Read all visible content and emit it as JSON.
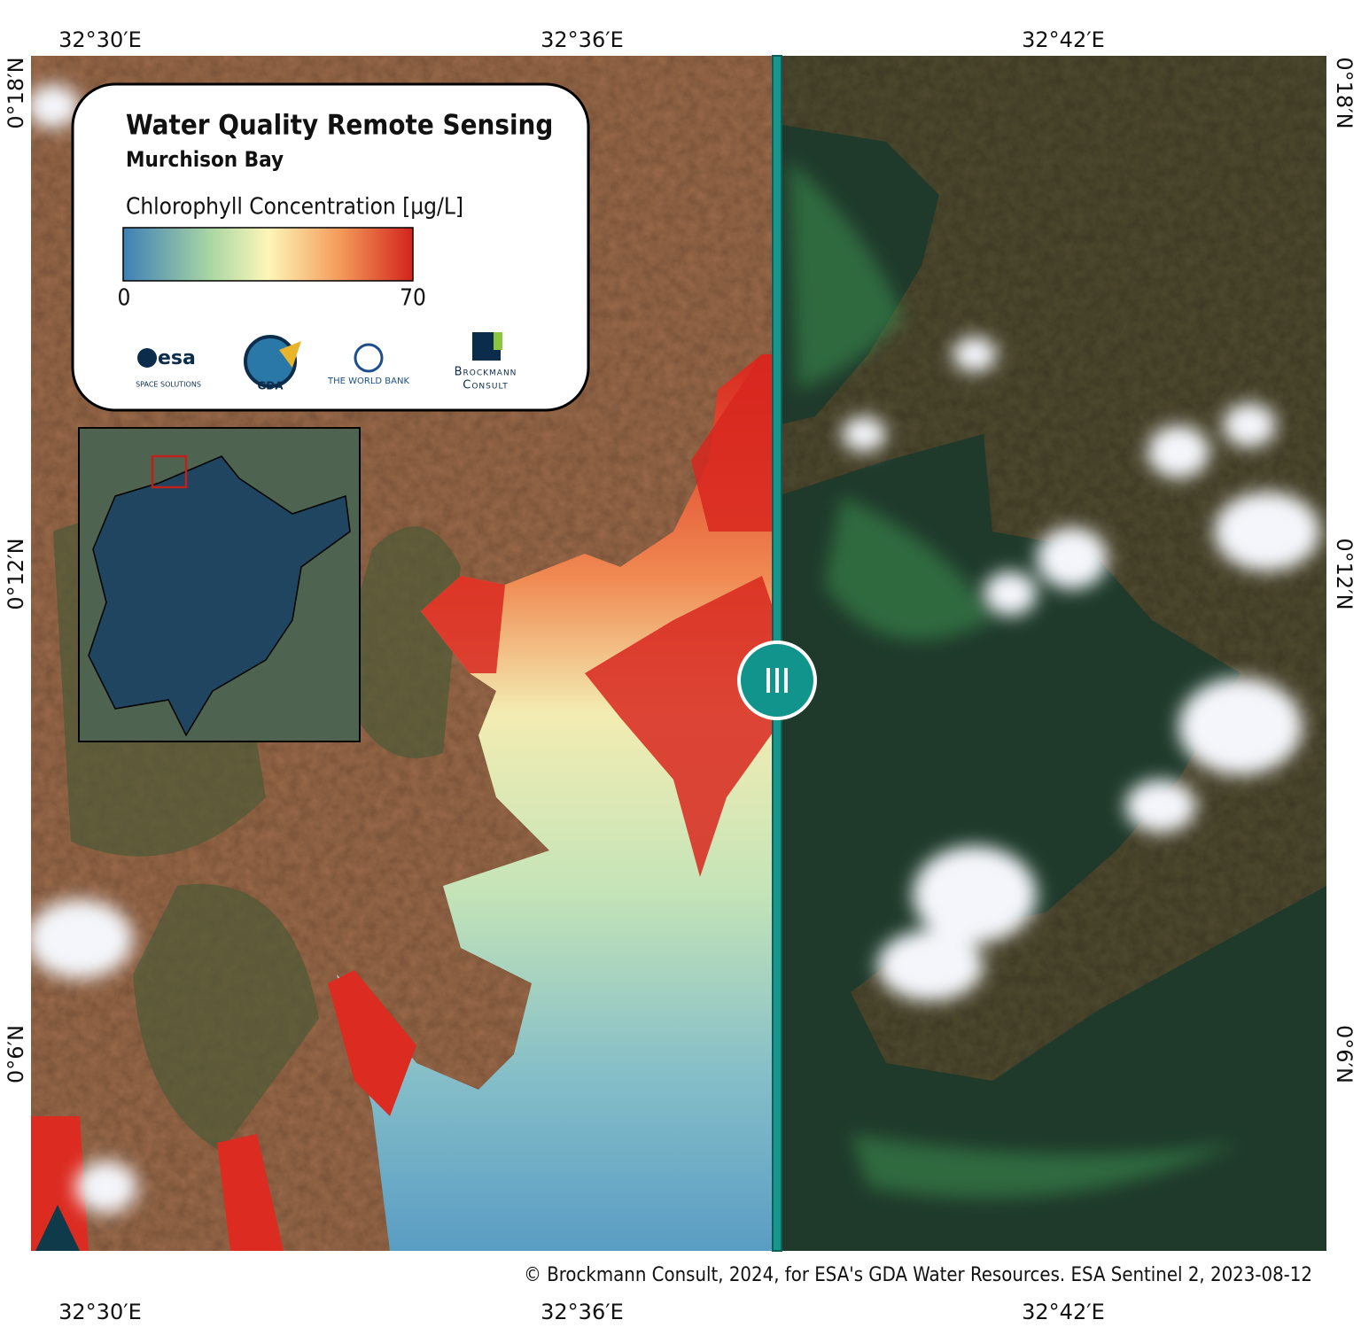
{
  "header": {
    "title": "Water Quality Remote Sensing",
    "subtitle": "Murchison Bay"
  },
  "legend": {
    "label": "Chlorophyll Concentration [µg/L]",
    "min": 0,
    "max": 70
  },
  "logos": {
    "esa": "esa",
    "esa_sub": "SPACE SOLUTIONS",
    "gda": "GDA",
    "world_bank": "THE WORLD BANK",
    "brockmann_1": "Brockmann",
    "brockmann_2": "Consult"
  },
  "axes": {
    "longitudes": [
      "32°30′E",
      "32°36′E",
      "32°42′E"
    ],
    "latitudes": [
      "0°18′N",
      "0°12′N",
      "0°6′N"
    ]
  },
  "credit": "© Brockmann Consult, 2024, for ESA's GDA Water Resources. ESA Sentinel 2, 2023-08-12"
}
